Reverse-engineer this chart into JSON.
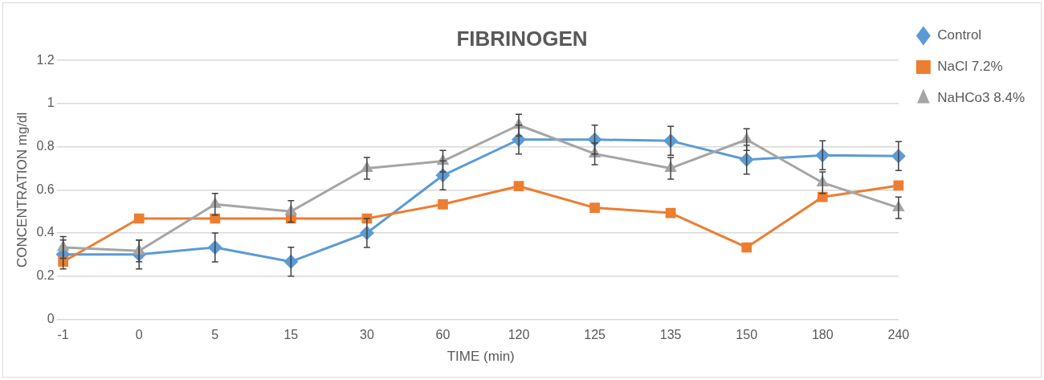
{
  "chart_data": {
    "type": "line",
    "title": "FIBRINOGEN",
    "xlabel": "TIME (min)",
    "ylabel": "CONCENTRATION mg/dl",
    "categories": [
      "-1",
      "0",
      "5",
      "15",
      "30",
      "60",
      "120",
      "125",
      "135",
      "150",
      "180",
      "240"
    ],
    "series": [
      {
        "name": "Control",
        "color": "#5b9bd5",
        "marker": "diamond",
        "values": [
          0.3,
          0.3,
          0.333,
          0.267,
          0.4,
          0.667,
          0.833,
          0.833,
          0.827,
          0.74,
          0.76,
          0.757
        ],
        "errors": [
          0.067,
          0.067,
          0.067,
          0.067,
          0.067,
          0.067,
          0.067,
          0.067,
          0.067,
          0.067,
          0.067,
          0.067
        ]
      },
      {
        "name": "NaCl 7.2%",
        "color": "#ed7d31",
        "marker": "square",
        "values": [
          0.267,
          0.467,
          0.467,
          0.467,
          0.467,
          0.533,
          0.617,
          0.517,
          0.493,
          0.333,
          0.567,
          0.62
        ]
      },
      {
        "name": "NaHCo3 8.4%",
        "color": "#a5a5a5",
        "marker": "triangle",
        "values": [
          0.333,
          0.317,
          0.533,
          0.5,
          0.7,
          0.733,
          0.9,
          0.767,
          0.7,
          0.833,
          0.633,
          0.517
        ],
        "errors": [
          0.05,
          0.05,
          0.05,
          0.05,
          0.05,
          0.05,
          0.05,
          0.05,
          0.05,
          0.05,
          0.05,
          0.05
        ]
      }
    ],
    "ylim": [
      0,
      1.2
    ],
    "yticks": [
      0,
      0.2,
      0.4,
      0.6,
      0.8,
      1,
      1.2
    ],
    "grid": "y",
    "legend": "top right",
    "line_style": "solid"
  }
}
